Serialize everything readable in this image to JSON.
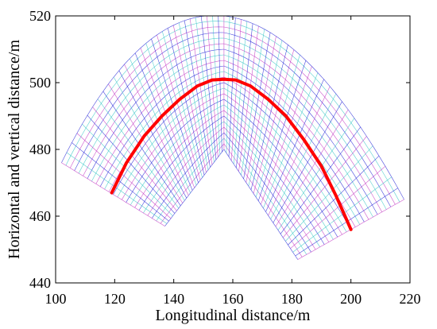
{
  "chart_data": {
    "type": "line",
    "title": "",
    "xlabel": "Longitudinal distance/m",
    "ylabel": "Horizontal and vertical distance/m",
    "xlim": [
      100,
      220
    ],
    "ylim": [
      440,
      520
    ],
    "xticks": [
      100,
      120,
      140,
      160,
      180,
      200,
      220
    ],
    "yticks": [
      440,
      460,
      480,
      500,
      520
    ],
    "grid": false,
    "legend": "none",
    "mesh": {
      "center": [
        157,
        480
      ],
      "left_edge_ends": [
        [
          102,
          476
        ],
        [
          137,
          457
        ]
      ],
      "right_edge_ends": [
        [
          182,
          447
        ],
        [
          218,
          465
        ]
      ],
      "outer_arc_apex": [
        157,
        520
      ],
      "inner_boundary_converges_at": [
        157,
        480
      ],
      "colors": [
        "#2b2bd8",
        "#c43bc4",
        "#3cc8c8"
      ]
    },
    "series": [
      {
        "color": "#ff0000",
        "x": [
          119,
          124,
          130,
          136,
          142,
          148,
          153,
          157,
          161,
          166,
          172,
          178,
          184,
          190,
          195,
          200
        ],
        "y": [
          467,
          476,
          484,
          490,
          495,
          499,
          500.8,
          501,
          500.8,
          499,
          495,
          490,
          483,
          475,
          466,
          456
        ]
      }
    ]
  },
  "axis_labels": {
    "x": "Longitudinal distance/m",
    "y": "Horizontal and vertical distance/m"
  }
}
